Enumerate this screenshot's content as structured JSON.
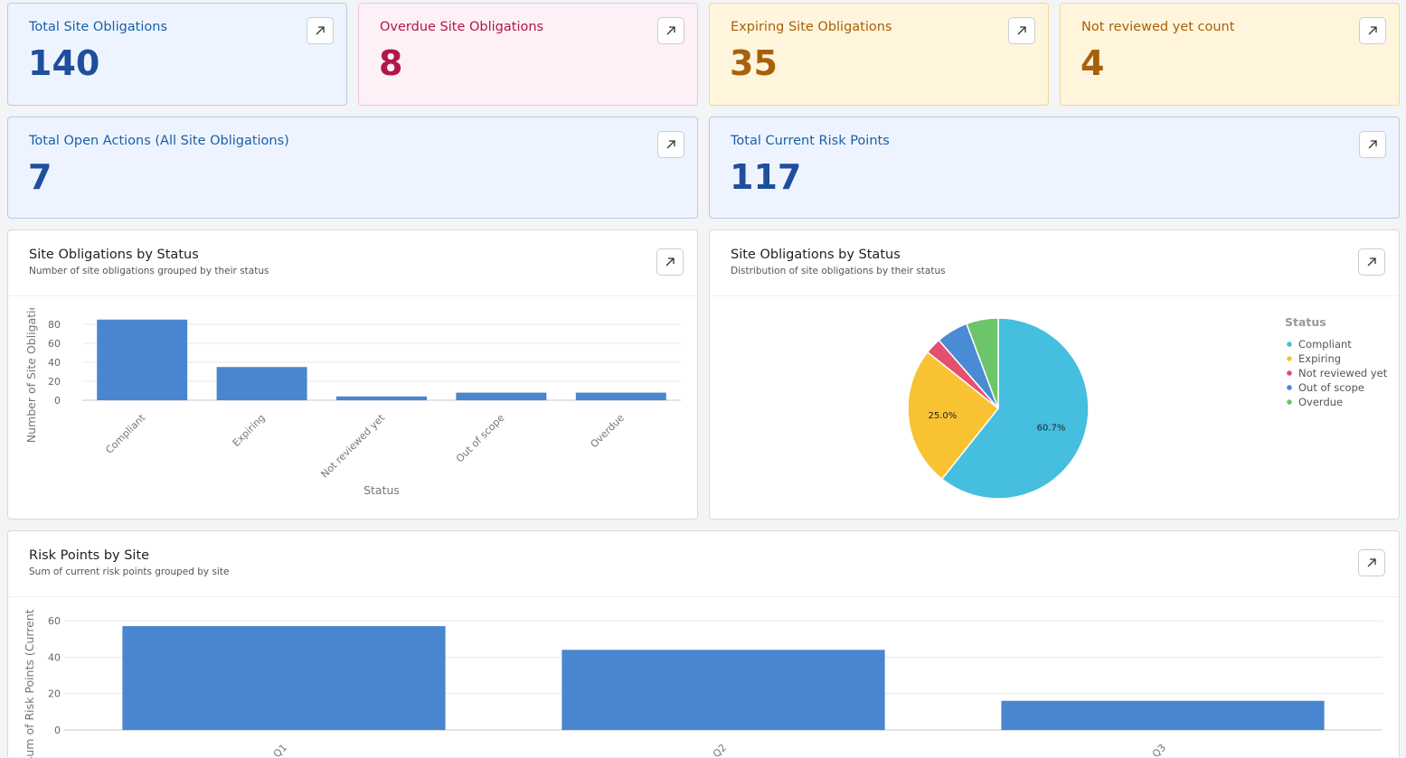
{
  "cards": [
    {
      "title": "Total Site Obligations",
      "value": 140
    },
    {
      "title": "Overdue Site Obligations",
      "value": 8
    },
    {
      "title": "Expiring Site Obligations",
      "value": 35
    },
    {
      "title": "Not reviewed yet count",
      "value": 4
    },
    {
      "title": "Total Open Actions (All Site Obligations)",
      "value": 7
    },
    {
      "title": "Total Current Risk Points",
      "value": 117
    }
  ],
  "chart_data": [
    {
      "type": "bar",
      "title": "Site Obligations by Status",
      "subtitle": "Number of site obligations grouped by their status",
      "categories": [
        "Compliant",
        "Expiring",
        "Not reviewed yet",
        "Out of scope",
        "Overdue"
      ],
      "values": [
        85,
        35,
        4,
        8,
        8
      ],
      "color": "#4a86cf",
      "ylim": [
        0,
        90
      ],
      "yticks": [
        0,
        20,
        40,
        60,
        80
      ],
      "grid": true,
      "xlabel": "Status",
      "ylabel": "Number of Site Obligations"
    },
    {
      "type": "pie",
      "title": "Site Obligations by Status",
      "subtitle": "Distribution of site obligations by their status",
      "legend_title": "Status",
      "legend": "right",
      "categories": [
        "Compliant",
        "Expiring",
        "Not reviewed yet",
        "Out of scope",
        "Overdue"
      ],
      "values": [
        60.7,
        25,
        2.9,
        5.7,
        5.7
      ],
      "value_labels": [
        "60.7%",
        "25.0%",
        null,
        null,
        null
      ],
      "colors": [
        "#45bedf",
        "#f8c233",
        "#e5506e",
        "#4a8bd6",
        "#6cc56a"
      ]
    },
    {
      "type": "bar",
      "title": "Risk Points by Site",
      "subtitle": "Sum of current risk points grouped by site",
      "categories": [
        "Q1",
        "Q2",
        "Q3"
      ],
      "values": [
        57,
        44,
        16
      ],
      "color": "#4a86cf",
      "ylim": [
        0,
        60
      ],
      "yticks": [
        0,
        20,
        40,
        60
      ],
      "grid": true,
      "ylabel": "Sum of Risk Points (Current)"
    }
  ]
}
